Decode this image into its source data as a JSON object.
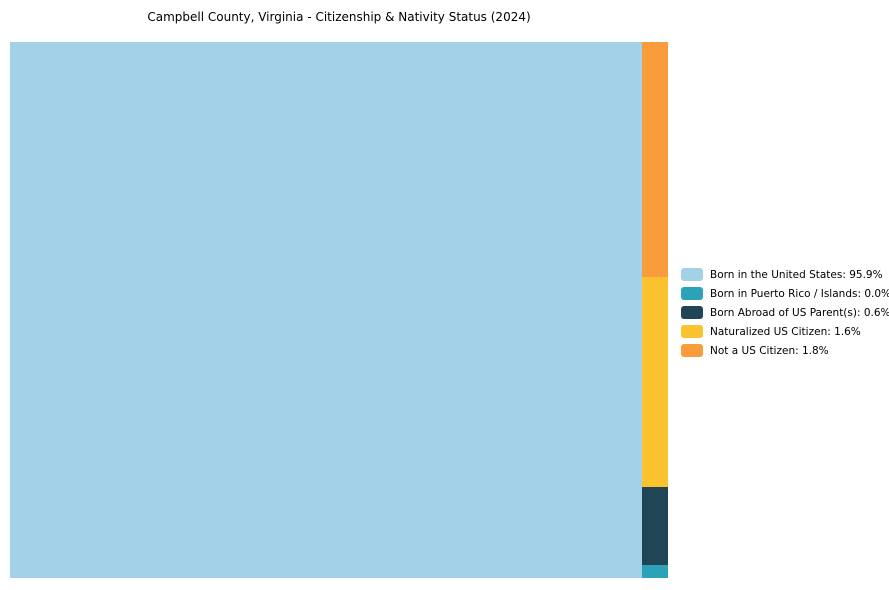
{
  "title": "Campbell County, Virginia - Citizenship & Nativity Status (2024)",
  "chart_data": {
    "type": "treemap",
    "title": "Campbell County, Virginia - Citizenship & Nativity Status (2024)",
    "categories": [
      "Born in the United States",
      "Born in Puerto Rico / Islands",
      "Born Abroad of US Parent(s)",
      "Naturalized US Citizen",
      "Not a US Citizen"
    ],
    "values": [
      95.9,
      0.0,
      0.6,
      1.6,
      1.8
    ],
    "colors": [
      "#A3D2E8",
      "#2CA2B8",
      "#1F4557",
      "#FBC230",
      "#F89C3C"
    ],
    "legend_position": "right",
    "legend_labels": [
      "Born in the United States: 95.9%",
      "Born in Puerto Rico / Islands: 0.0%",
      "Born Abroad of US Parent(s): 0.6%",
      "Naturalized US Citizen: 1.6%",
      "Not a US Citizen: 1.8%"
    ]
  }
}
